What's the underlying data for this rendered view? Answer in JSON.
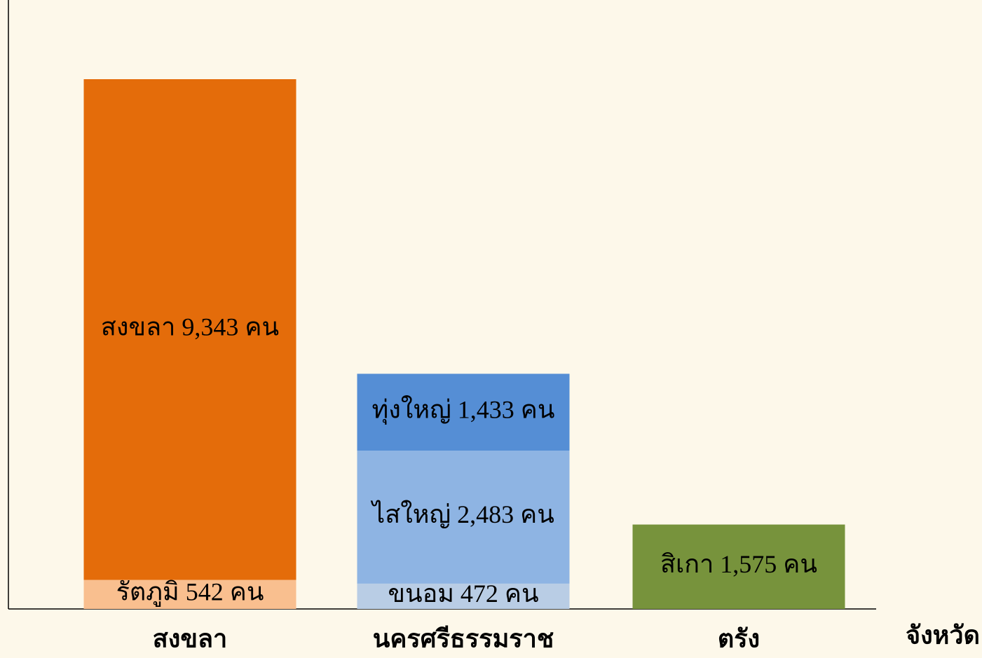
{
  "chart_data": {
    "type": "stacked-bar",
    "x_label": "จังหวัด",
    "categories": [
      "สงขลา",
      "นครศรีธรรมราช",
      "ตรัง"
    ],
    "series": [
      {
        "values": [
          542,
          472,
          1575
        ],
        "colors": [
          "#f9bf8f",
          "#b9cde5",
          "#77933c"
        ],
        "value_labels": [
          "รัตภูมิ 542 คน",
          "ขนอม 472 คน",
          "สิเกา 1,575 คน"
        ]
      },
      {
        "values": [
          9343,
          2483,
          null
        ],
        "colors": [
          "#e46c0a",
          "#8eb4e3",
          null
        ],
        "value_labels": [
          "สงขลา 9,343 คน",
          "ไสใหญ่ 2,483 คน",
          null
        ]
      },
      {
        "values": [
          null,
          1433,
          null
        ],
        "colors": [
          null,
          "#558ed5",
          null
        ],
        "value_labels": [
          null,
          "ทุ่งใหญ่ 1,433 คน",
          null
        ]
      }
    ]
  }
}
